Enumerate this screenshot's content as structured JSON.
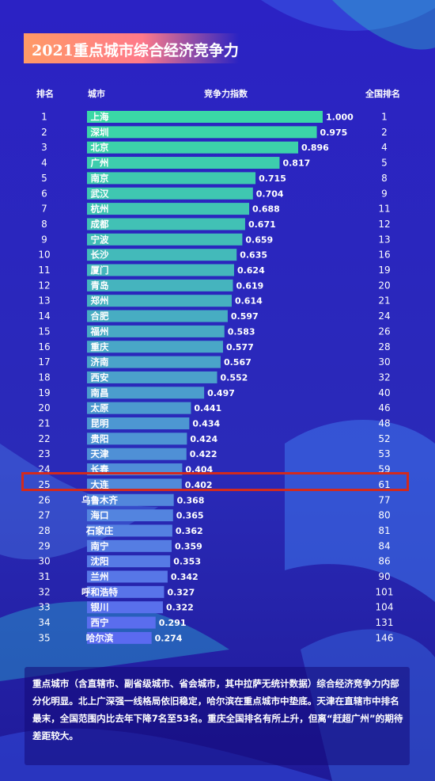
{
  "title": "2021重点城市综合经济竞争力",
  "headers": {
    "rank": "排名",
    "city": "城市",
    "index": "竞争力指数",
    "national_rank": "全国排名"
  },
  "colors": {
    "bar_top": "#3ad7a6",
    "bar_bottom": "#5b6af0",
    "highlight": "#d22a1e",
    "title_gradient": "#ff9a66"
  },
  "chart_data": {
    "type": "bar",
    "orientation": "horizontal",
    "title": "2021重点城市综合经济竞争力",
    "xlabel": "竞争力指数",
    "ylabel": "城市",
    "xlim": [
      0,
      1.0
    ],
    "highlighted_category": "长春",
    "categories": [
      "上海",
      "深圳",
      "北京",
      "广州",
      "南京",
      "武汉",
      "杭州",
      "成都",
      "宁波",
      "长沙",
      "厦门",
      "青岛",
      "郑州",
      "合肥",
      "福州",
      "重庆",
      "济南",
      "西安",
      "南昌",
      "太原",
      "昆明",
      "贵阳",
      "天津",
      "长春",
      "大连",
      "乌鲁木齐",
      "海口",
      "石家庄",
      "南宁",
      "沈阳",
      "兰州",
      "呼和浩特",
      "银川",
      "西宁",
      "哈尔滨"
    ],
    "ranks": [
      "1",
      "2",
      "3",
      "4",
      "5",
      "6",
      "7",
      "8",
      "9",
      "10",
      "11",
      "12",
      "13",
      "14",
      "15",
      "16",
      "17",
      "18",
      "19",
      "20",
      "21",
      "22",
      "23",
      "24",
      "25",
      "26",
      "27",
      "28",
      "29",
      "30",
      "31",
      "32",
      "33",
      "34",
      "35"
    ],
    "values": [
      1.0,
      0.975,
      0.896,
      0.817,
      0.715,
      0.704,
      0.688,
      0.671,
      0.659,
      0.635,
      0.624,
      0.619,
      0.614,
      0.597,
      0.583,
      0.577,
      0.567,
      0.552,
      0.497,
      0.441,
      0.434,
      0.424,
      0.422,
      0.404,
      0.402,
      0.368,
      0.365,
      0.362,
      0.359,
      0.353,
      0.342,
      0.327,
      0.322,
      0.291,
      0.274
    ],
    "value_labels": [
      "1.000",
      "0.975",
      "0.896",
      "0.817",
      "0.715",
      "0.704",
      "0.688",
      "0.671",
      "0.659",
      "0.635",
      "0.624",
      "0.619",
      "0.614",
      "0.597",
      "0.583",
      "0.577",
      "0.567",
      "0.552",
      "0.497",
      "0.441",
      "0.434",
      "0.424",
      "0.422",
      "0.404",
      "0.402",
      "0.368",
      "0.365",
      "0.362",
      "0.359",
      "0.353",
      "0.342",
      "0.327",
      "0.322",
      "0.291",
      "0.274"
    ],
    "national_ranks": [
      "1",
      "2",
      "4",
      "5",
      "8",
      "9",
      "11",
      "12",
      "13",
      "16",
      "19",
      "20",
      "21",
      "24",
      "26",
      "28",
      "30",
      "32",
      "40",
      "46",
      "48",
      "52",
      "53",
      "59",
      "61",
      "77",
      "80",
      "81",
      "84",
      "86",
      "90",
      "101",
      "104",
      "131",
      "146"
    ]
  },
  "note": "重点城市（含直辖市、副省级城市、省会城市，其中拉萨无统计数据）综合经济竞争力内部分化明显。北上广深强一线格局依旧稳定，哈尔滨在重点城市中垫底。天津在直辖市中排名最末，全国范围内比去年下降7名至53名。重庆全国排名有所上升，但离“赶超广州”的期待差距较大。"
}
